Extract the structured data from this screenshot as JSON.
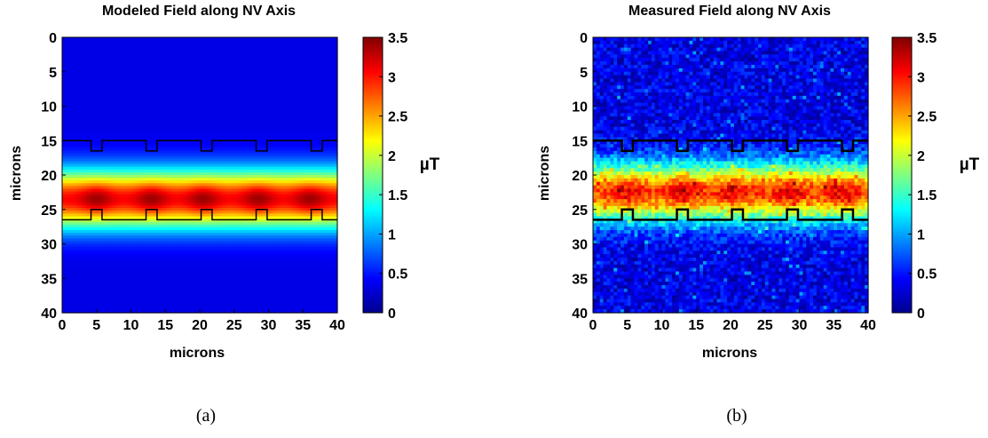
{
  "chart_data": [
    {
      "type": "heatmap",
      "title": "Modeled Field along NV Axis",
      "xlabel": "microns",
      "ylabel": "microns",
      "xlim": [
        0,
        40
      ],
      "ylim": [
        40,
        0
      ],
      "x_ticks": [
        "0",
        "5",
        "10",
        "15",
        "20",
        "25",
        "30",
        "35",
        "40"
      ],
      "y_ticks": [
        "0",
        "5",
        "10",
        "15",
        "20",
        "25",
        "30",
        "35",
        "40"
      ],
      "colorbar": {
        "unit": "µT",
        "range": [
          0,
          3.5
        ],
        "ticks": [
          "0",
          "0.5",
          "1",
          "1.5",
          "2",
          "2.5",
          "3",
          "3.5"
        ],
        "colormap": "jet"
      },
      "band": {
        "center_y": 23.5,
        "peak_value": 3.0,
        "hotspots_x": [
          5,
          13,
          20.5,
          28.5,
          36
        ]
      },
      "outline": {
        "top_edge_y": 15,
        "top_notch_y": 16.5,
        "bottom_edge_y": 26.5,
        "bottom_notch_y": 25,
        "notch_centers_x": [
          5,
          13,
          21,
          29,
          37
        ],
        "notch_width": 1.6
      },
      "caption": "(a)"
    },
    {
      "type": "heatmap",
      "title": "Measured Field along NV Axis",
      "xlabel": "microns",
      "ylabel": "microns",
      "xlim": [
        0,
        40
      ],
      "ylim": [
        40,
        0
      ],
      "x_ticks": [
        "0",
        "5",
        "10",
        "15",
        "20",
        "25",
        "30",
        "35",
        "40"
      ],
      "y_ticks": [
        "0",
        "5",
        "10",
        "15",
        "20",
        "25",
        "30",
        "35",
        "40"
      ],
      "colorbar": {
        "unit": "µT",
        "range": [
          0,
          3.5
        ],
        "ticks": [
          "0",
          "0.5",
          "1",
          "1.5",
          "2",
          "2.5",
          "3",
          "3.5"
        ],
        "colormap": "jet"
      },
      "band": {
        "center_y": 22.5,
        "peak_value": 2.7,
        "hotspots_x": [
          5,
          13,
          20.5,
          28.5,
          36
        ]
      },
      "outline": {
        "top_edge_y": 15,
        "top_notch_y": 16.5,
        "bottom_edge_y": 26.5,
        "bottom_notch_y": 25,
        "notch_centers_x": [
          5,
          13,
          21,
          29,
          37
        ],
        "notch_width": 1.6
      },
      "caption": "(b)"
    }
  ]
}
